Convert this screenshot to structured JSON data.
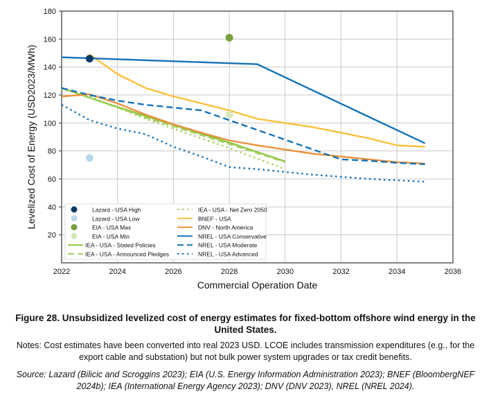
{
  "chart_data": {
    "type": "line",
    "xlabel": "Commercial Operation Date",
    "ylabel": "Levelized Cost of Energy (USD2023/MWh)",
    "xlim": [
      2022,
      2036
    ],
    "ylim": [
      0,
      180
    ],
    "xticks": [
      2022,
      2024,
      2026,
      2028,
      2030,
      2032,
      2034,
      2036
    ],
    "yticks": [
      20,
      40,
      60,
      80,
      100,
      120,
      140,
      160,
      180
    ],
    "grid": true,
    "legend_placement": "bottom-left",
    "points": [
      {
        "name": "Lazard - USA High",
        "color": "#0b3a66",
        "x": 2023,
        "y": 146
      },
      {
        "name": "Lazard - USA Low",
        "color": "#b9d9ea",
        "x": 2023,
        "y": 75
      },
      {
        "name": "EIA - USA Max",
        "color": "#77a03d",
        "x": 2028,
        "y": 161
      },
      {
        "name": "EIA - USA Min",
        "color": "#d7e8b8",
        "x": 2028,
        "y": 106
      }
    ],
    "series": [
      {
        "name": "IEA - USA - Stated Policies",
        "color": "#8dc63f",
        "style": "solid",
        "x": [
          2022,
          2023,
          2025,
          2028,
          2030
        ],
        "y": [
          125,
          118,
          105,
          86,
          72.5
        ]
      },
      {
        "name": "IEA - USA - Announced Pledges",
        "color": "#a3cf5e",
        "style": "dashed",
        "x": [
          2022,
          2023,
          2025,
          2028,
          2030
        ],
        "y": [
          125,
          118,
          104,
          85,
          72
        ]
      },
      {
        "name": "IEA - USA - Net Zero 2050",
        "color": "#a3cf5e",
        "style": "dotted",
        "x": [
          2022,
          2023,
          2025,
          2028,
          2030
        ],
        "y": [
          124,
          119,
          103,
          82,
          67
        ]
      },
      {
        "name": "BNEF - USA",
        "color": "#fbbf3a",
        "style": "solid",
        "x": [
          2023,
          2024,
          2025,
          2026,
          2027,
          2028,
          2029,
          2030,
          2031,
          2032,
          2033,
          2034,
          2035
        ],
        "y": [
          149,
          135,
          125,
          119,
          114,
          109,
          103,
          100,
          97,
          93,
          89,
          84,
          83
        ]
      },
      {
        "name": "DNV - North America",
        "color": "#e8913a",
        "style": "solid",
        "x": [
          2022,
          2023,
          2024,
          2025,
          2026,
          2027,
          2028,
          2029,
          2030,
          2031,
          2032,
          2033,
          2034,
          2035
        ],
        "y": [
          119,
          120.5,
          114,
          106,
          99,
          93,
          87.5,
          84,
          81,
          78,
          76,
          74,
          72,
          71
        ]
      },
      {
        "name": "NREL - USA Conservative",
        "color": "#1372b8",
        "style": "solid",
        "x": [
          2022,
          2029,
          2035
        ],
        "y": [
          147,
          142,
          85.5
        ]
      },
      {
        "name": "NREL - USA Moderate",
        "color": "#1372b8",
        "style": "dashed",
        "x": [
          2022,
          2023,
          2024,
          2025,
          2026,
          2027,
          2028,
          2029,
          2030,
          2031,
          2032,
          2033,
          2034,
          2035
        ],
        "y": [
          125,
          120,
          116,
          113,
          111,
          109,
          102,
          95,
          88,
          81,
          74,
          73,
          71.5,
          70.5
        ]
      },
      {
        "name": "NREL - USA Advanced",
        "color": "#1372b8",
        "style": "dotted",
        "x": [
          2022,
          2023,
          2024,
          2025,
          2026,
          2027,
          2028,
          2029,
          2030,
          2031,
          2032,
          2033,
          2034,
          2035
        ],
        "y": [
          113,
          102,
          96,
          92,
          83,
          76,
          68.5,
          67,
          65,
          63,
          61.5,
          60,
          59,
          58
        ]
      }
    ]
  },
  "caption": {
    "title": "Figure 28. Unsubsidized levelized cost of energy estimates for fixed-bottom offshore wind energy in the United States.",
    "notes": "Notes: Cost estimates have been converted into real 2023 USD. LCOE includes transmission expenditures (e.g., for the export cable and substation) but not bulk power system upgrades or tax credit benefits.",
    "source": "Source: Lazard (Bilicic and Scroggins 2023); EIA (U.S. Energy Information Administration 2023); BNEF (BloombergNEF 2024b); IEA (International Energy Agency 2023); DNV (DNV 2023), NREL (NREL 2024)."
  }
}
